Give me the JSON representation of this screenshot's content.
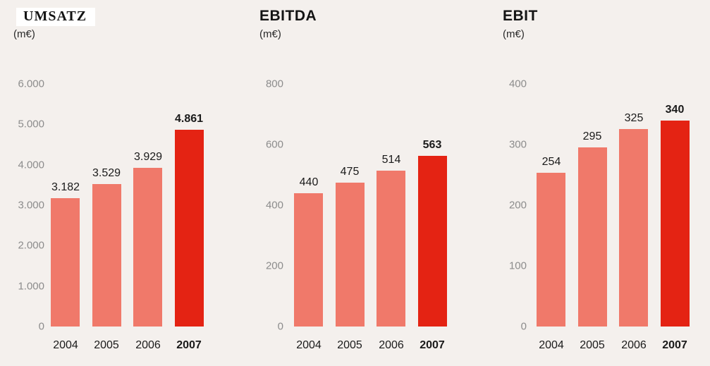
{
  "page": {
    "background_color": "#F4F0ED"
  },
  "colors": {
    "bar_default": "#F0796A",
    "bar_highlight": "#E42313",
    "axis_tick_text": "#8C8C8C",
    "value_label_text": "#1A1A1A",
    "title_text": "#141414",
    "title_highlight_background": "#FFFFFF"
  },
  "chart_data": [
    {
      "type": "bar",
      "title": "UMSATZ",
      "subtitle": "(m€)",
      "title_has_white_box": true,
      "categories": [
        "2004",
        "2005",
        "2006",
        "2007"
      ],
      "values": [
        3182,
        3529,
        3929,
        4861
      ],
      "value_labels": [
        "3.182",
        "3.529",
        "3.929",
        "4.861"
      ],
      "highlight_index": 3,
      "ylim": [
        0,
        6000
      ],
      "yticks": [
        {
          "value": 6000,
          "label": "6.000"
        },
        {
          "value": 5000,
          "label": "5.000"
        },
        {
          "value": 4000,
          "label": "4.000"
        },
        {
          "value": 3000,
          "label": "3.000"
        },
        {
          "value": 2000,
          "label": "2.000"
        },
        {
          "value": 1000,
          "label": "1.000"
        },
        {
          "value": 0,
          "label": "0"
        }
      ],
      "grid": false,
      "legend": "none"
    },
    {
      "type": "bar",
      "title": "EBITDA",
      "subtitle": "(m€)",
      "title_has_white_box": false,
      "categories": [
        "2004",
        "2005",
        "2006",
        "2007"
      ],
      "values": [
        440,
        475,
        514,
        563
      ],
      "value_labels": [
        "440",
        "475",
        "514",
        "563"
      ],
      "highlight_index": 3,
      "ylim": [
        0,
        800
      ],
      "yticks": [
        {
          "value": 800,
          "label": "800"
        },
        {
          "value": 600,
          "label": "600"
        },
        {
          "value": 400,
          "label": "400"
        },
        {
          "value": 200,
          "label": "200"
        },
        {
          "value": 0,
          "label": "0"
        }
      ],
      "grid": false,
      "legend": "none"
    },
    {
      "type": "bar",
      "title": "EBIT",
      "subtitle": "(m€)",
      "title_has_white_box": false,
      "categories": [
        "2004",
        "2005",
        "2006",
        "2007"
      ],
      "values": [
        254,
        295,
        325,
        340
      ],
      "value_labels": [
        "254",
        "295",
        "325",
        "340"
      ],
      "highlight_index": 3,
      "ylim": [
        0,
        400
      ],
      "yticks": [
        {
          "value": 400,
          "label": "400"
        },
        {
          "value": 300,
          "label": "300"
        },
        {
          "value": 200,
          "label": "200"
        },
        {
          "value": 100,
          "label": "100"
        },
        {
          "value": 0,
          "label": "0"
        }
      ],
      "grid": false,
      "legend": "none"
    }
  ]
}
